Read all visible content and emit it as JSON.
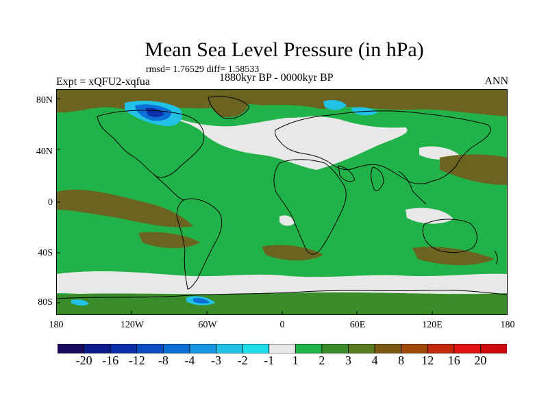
{
  "title": "Mean Sea Level Pressure (in hPa)",
  "stats": "rmsd= 1.76529 diff= 1.58533",
  "experiment": "Expt = xQFU2-xqfua",
  "period": "1880kyr BP - 0000kyr BP",
  "season": "ANN",
  "lat_ticks": [
    "80N",
    "40N",
    "0",
    "40S",
    "80S"
  ],
  "lon_ticks": [
    "180",
    "120W",
    "60W",
    "0",
    "60E",
    "120E",
    "180"
  ],
  "colorbar": {
    "labels": [
      "-20",
      "-16",
      "-12",
      "-8",
      "-4",
      "-3",
      "-2",
      "-1",
      "1",
      "2",
      "3",
      "4",
      "8",
      "12",
      "16",
      "20"
    ],
    "colors": [
      "#1a0a5e",
      "#0c1c8c",
      "#0a2fa8",
      "#0a4cc2",
      "#0b6fd6",
      "#1496e2",
      "#22c2e6",
      "#1ee0ea",
      "#e8e8e8",
      "#22b24a",
      "#3a8c2a",
      "#5a7a1e",
      "#7a5a10",
      "#a04a0a",
      "#c4280a",
      "#e01410",
      "#cc0a0a"
    ]
  },
  "regions": {
    "background": "#22b24a",
    "neutral": "#e8e8e8",
    "brown": "#6b6420",
    "olive": "#3a8c2a",
    "cyan": "#22c2e6",
    "blue": "#0b6fd6"
  }
}
